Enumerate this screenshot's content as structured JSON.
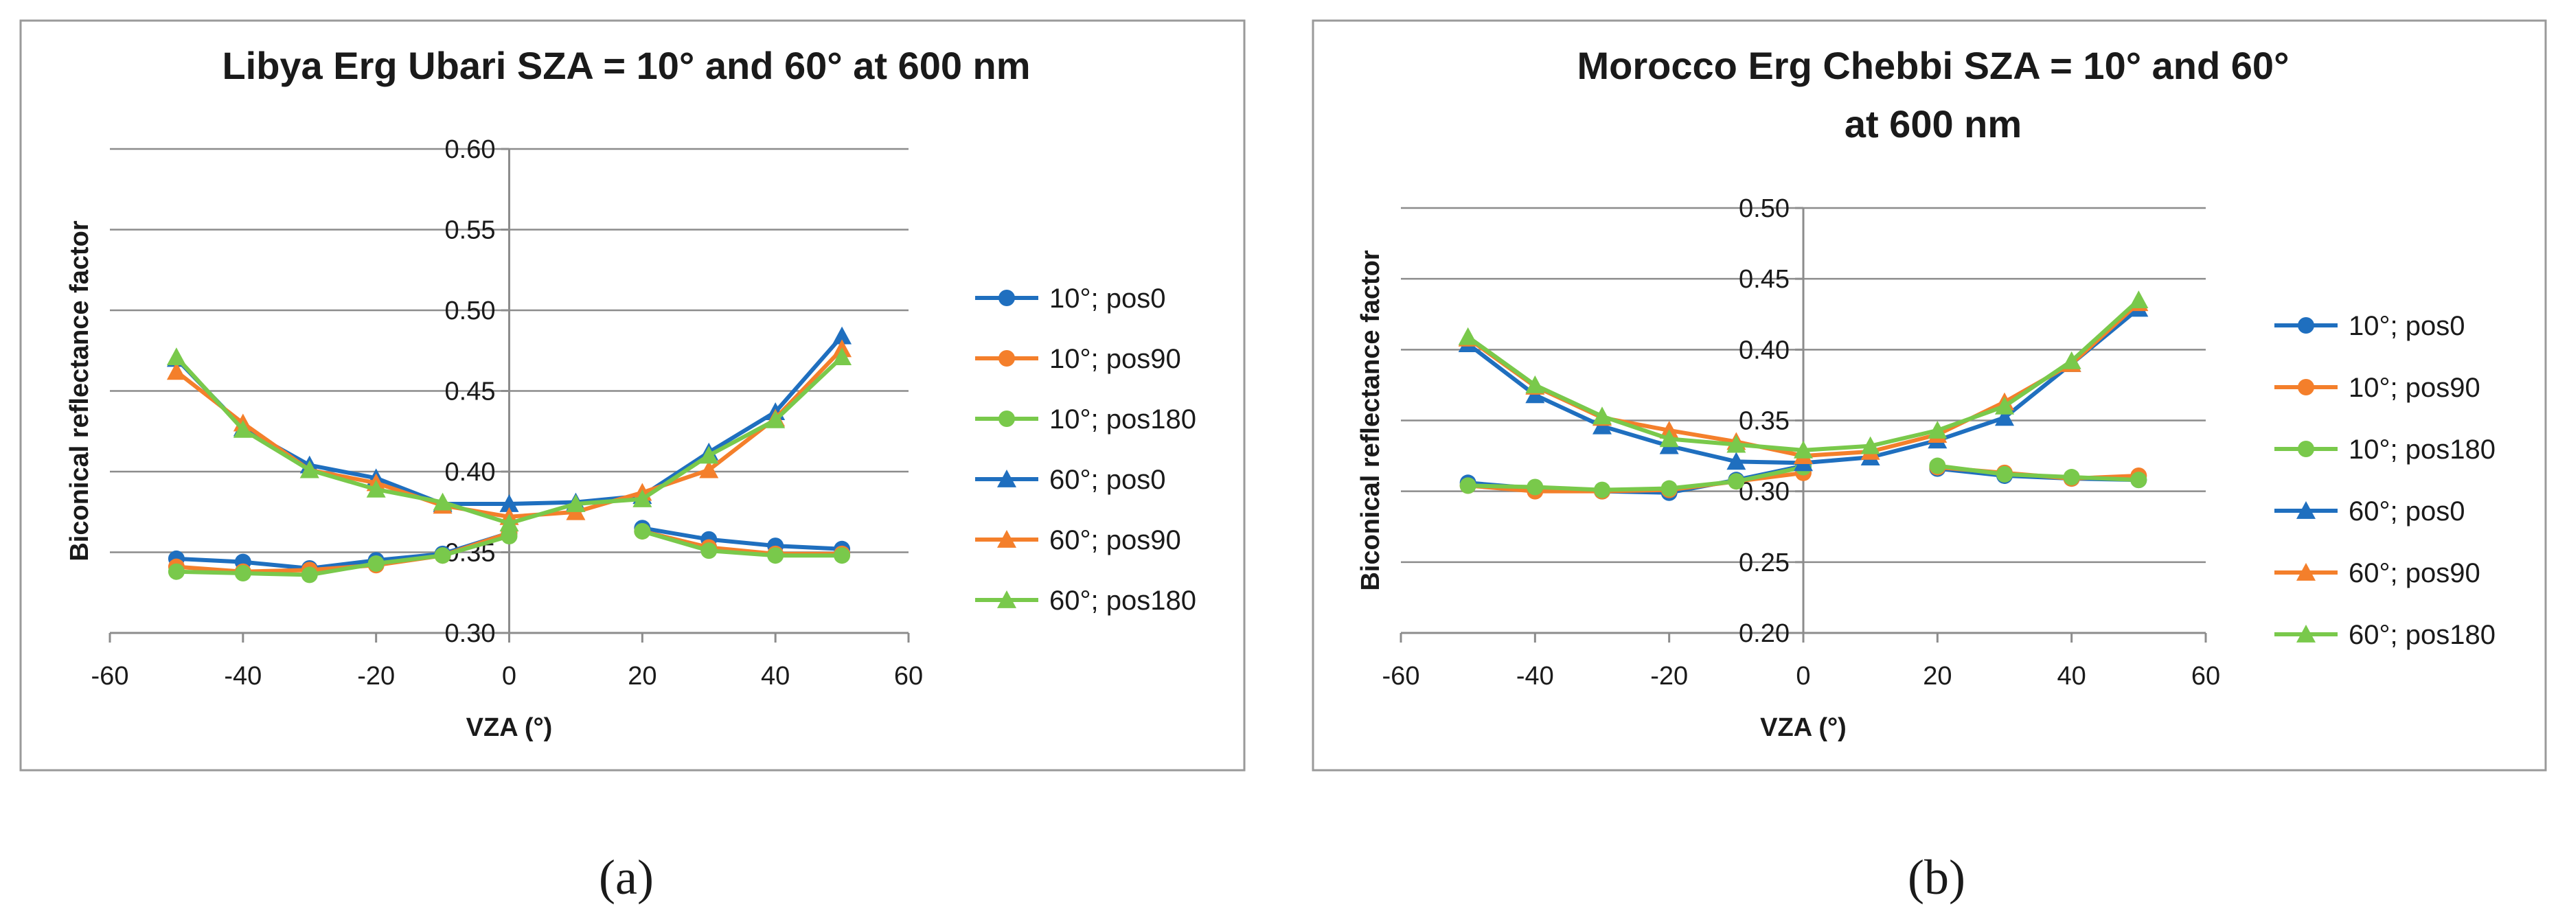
{
  "colors": {
    "pos0": "#1f6fbf",
    "pos90": "#f47f2b",
    "pos180": "#79c94b",
    "gridline": "#8c8c8c",
    "axis": "#8c8c8c",
    "frame": "#9a9a9a"
  },
  "panel_labels": [
    "(a)",
    "(b)"
  ],
  "chart_data": [
    {
      "type": "line",
      "title_lines": [
        "Libya Erg Ubari SZA = 10° and 60° at 600 nm"
      ],
      "xlabel": "VZA (°)",
      "ylabel": "Biconical reflectance factor",
      "xlim": [
        -60,
        60
      ],
      "ylim": [
        0.3,
        0.6
      ],
      "xticks": [
        -60,
        -40,
        -20,
        0,
        20,
        40,
        60
      ],
      "yticks": [
        0.3,
        0.35,
        0.4,
        0.45,
        0.5,
        0.55,
        0.6
      ],
      "xtick_labels": [
        "-60",
        "-40",
        "-20",
        "0",
        "20",
        "40",
        "60"
      ],
      "ytick_labels": [
        "0.30",
        "0.35",
        "0.40",
        "0.45",
        "0.50",
        "0.55",
        "0.60"
      ],
      "grid": true,
      "legend_position": "right",
      "series": [
        {
          "name": "10°; pos0",
          "color_key": "pos0",
          "marker": "circle",
          "segments": [
            {
              "x": [
                -50,
                -40,
                -30,
                -20,
                -10,
                0
              ],
              "y": [
                0.346,
                0.344,
                0.34,
                0.345,
                0.349,
                0.362
              ]
            },
            {
              "x": [
                20,
                30,
                40,
                50
              ],
              "y": [
                0.365,
                0.358,
                0.354,
                0.352
              ]
            }
          ]
        },
        {
          "name": "10°; pos90",
          "color_key": "pos90",
          "marker": "circle",
          "segments": [
            {
              "x": [
                -50,
                -40,
                -30,
                -20,
                -10,
                0
              ],
              "y": [
                0.341,
                0.338,
                0.339,
                0.342,
                0.348,
                0.362
              ]
            },
            {
              "x": [
                20,
                30,
                40,
                50
              ],
              "y": [
                0.363,
                0.353,
                0.349,
                0.349
              ]
            }
          ]
        },
        {
          "name": "10°; pos180",
          "color_key": "pos180",
          "marker": "circle",
          "segments": [
            {
              "x": [
                -50,
                -40,
                -30,
                -20,
                -10,
                0
              ],
              "y": [
                0.338,
                0.337,
                0.336,
                0.343,
                0.348,
                0.36
              ]
            },
            {
              "x": [
                20,
                30,
                40,
                50
              ],
              "y": [
                0.363,
                0.351,
                0.348,
                0.348
              ]
            }
          ]
        },
        {
          "name": "60°; pos0",
          "color_key": "pos0",
          "marker": "triangle",
          "segments": [
            {
              "x": [
                -50,
                -40,
                -30,
                -20,
                -10,
                0,
                10,
                20,
                30,
                40,
                50
              ],
              "y": [
                0.47,
                0.427,
                0.404,
                0.396,
                0.38,
                0.38,
                0.381,
                0.385,
                0.412,
                0.437,
                0.484
              ]
            }
          ]
        },
        {
          "name": "60°; pos90",
          "color_key": "pos90",
          "marker": "triangle",
          "segments": [
            {
              "x": [
                -50,
                -40,
                -30,
                -20,
                -10,
                0,
                10,
                20,
                30,
                40,
                50
              ],
              "y": [
                0.462,
                0.43,
                0.401,
                0.393,
                0.379,
                0.372,
                0.375,
                0.387,
                0.401,
                0.433,
                0.476
              ]
            }
          ]
        },
        {
          "name": "60°; pos180",
          "color_key": "pos180",
          "marker": "triangle",
          "segments": [
            {
              "x": [
                -50,
                -40,
                -30,
                -20,
                -10,
                0,
                10,
                20,
                30,
                40,
                50
              ],
              "y": [
                0.471,
                0.426,
                0.401,
                0.389,
                0.381,
                0.368,
                0.38,
                0.383,
                0.41,
                0.432,
                0.471
              ]
            }
          ]
        }
      ]
    },
    {
      "type": "line",
      "title_lines": [
        "Morocco Erg Chebbi SZA = 10° and 60°",
        "at 600 nm"
      ],
      "xlabel": "VZA (°)",
      "ylabel": "Biconical reflectance factor",
      "xlim": [
        -60,
        60
      ],
      "ylim": [
        0.2,
        0.5
      ],
      "xticks": [
        -60,
        -40,
        -20,
        0,
        20,
        40,
        60
      ],
      "yticks": [
        0.2,
        0.25,
        0.3,
        0.35,
        0.4,
        0.45,
        0.5
      ],
      "xtick_labels": [
        "-60",
        "-40",
        "-20",
        "0",
        "20",
        "40",
        "60"
      ],
      "ytick_labels": [
        "0.20",
        "0.25",
        "0.30",
        "0.35",
        "0.40",
        "0.45",
        "0.50"
      ],
      "grid": true,
      "legend_position": "right",
      "series": [
        {
          "name": "10°; pos0",
          "color_key": "pos0",
          "marker": "circle",
          "segments": [
            {
              "x": [
                -50,
                -40,
                -30,
                -20,
                -10,
                0
              ],
              "y": [
                0.306,
                0.302,
                0.3,
                0.299,
                0.308,
                0.318
              ]
            },
            {
              "x": [
                20,
                30,
                40,
                50
              ],
              "y": [
                0.316,
                0.311,
                0.309,
                0.308
              ]
            }
          ]
        },
        {
          "name": "10°; pos90",
          "color_key": "pos90",
          "marker": "circle",
          "segments": [
            {
              "x": [
                -50,
                -40,
                -30,
                -20,
                -10,
                0
              ],
              "y": [
                0.304,
                0.3,
                0.3,
                0.301,
                0.307,
                0.313
              ]
            },
            {
              "x": [
                20,
                30,
                40,
                50
              ],
              "y": [
                0.317,
                0.313,
                0.309,
                0.311
              ]
            }
          ]
        },
        {
          "name": "10°; pos180",
          "color_key": "pos180",
          "marker": "circle",
          "segments": [
            {
              "x": [
                -50,
                -40,
                -30,
                -20,
                -10,
                0
              ],
              "y": [
                0.304,
                0.303,
                0.301,
                0.302,
                0.307,
                0.317
              ]
            },
            {
              "x": [
                20,
                30,
                40,
                50
              ],
              "y": [
                0.318,
                0.312,
                0.31,
                0.308
              ]
            }
          ]
        },
        {
          "name": "60°; pos0",
          "color_key": "pos0",
          "marker": "triangle",
          "segments": [
            {
              "x": [
                -50,
                -40,
                -30,
                -20,
                -10,
                0,
                10,
                20,
                30,
                40,
                50
              ],
              "y": [
                0.404,
                0.368,
                0.346,
                0.332,
                0.321,
                0.32,
                0.324,
                0.336,
                0.352,
                0.39,
                0.429
              ]
            }
          ]
        },
        {
          "name": "60°; pos90",
          "color_key": "pos90",
          "marker": "triangle",
          "segments": [
            {
              "x": [
                -50,
                -40,
                -30,
                -20,
                -10,
                0,
                10,
                20,
                30,
                40,
                50
              ],
              "y": [
                0.408,
                0.374,
                0.352,
                0.343,
                0.335,
                0.325,
                0.328,
                0.34,
                0.363,
                0.39,
                0.433
              ]
            }
          ]
        },
        {
          "name": "60°; pos180",
          "color_key": "pos180",
          "marker": "triangle",
          "segments": [
            {
              "x": [
                -50,
                -40,
                -30,
                -20,
                -10,
                0,
                10,
                20,
                30,
                40,
                50
              ],
              "y": [
                0.409,
                0.375,
                0.353,
                0.337,
                0.333,
                0.329,
                0.332,
                0.343,
                0.36,
                0.392,
                0.435
              ]
            }
          ]
        }
      ]
    }
  ]
}
